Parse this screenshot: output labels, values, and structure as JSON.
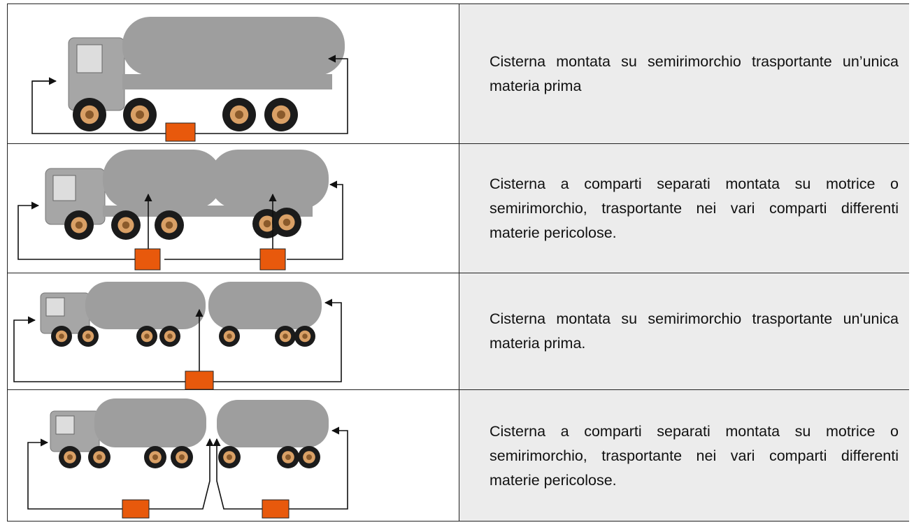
{
  "table": {
    "rows": [
      [
        "Cisterna montata su semirimorchio trasportante un’unica materia prima"
      ],
      [
        "Cisterna a comparti separati montata su motrice o semirimorchio, trasportante nei vari comparti differenti materie pericolose."
      ],
      [
        "Cisterna montata su semirimorchio trasportante un'unica materia prima."
      ],
      [
        "Cisterna a comparti separati montata su motrice o semirimorchio, trasportante nei vari comparti differenti materie pericolose."
      ]
    ]
  }
}
